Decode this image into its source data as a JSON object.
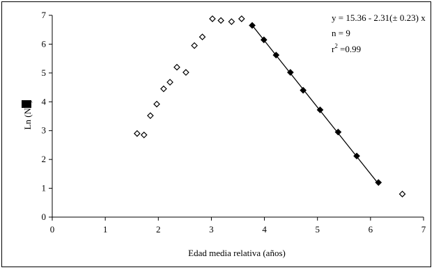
{
  "chart_data": {
    "type": "scatter",
    "xlabel": "Edad media relativa (años)",
    "ylabel": "Ln (N/t)",
    "xlim": [
      0,
      7
    ],
    "ylim": [
      0,
      7
    ],
    "xticks": [
      0,
      1,
      2,
      3,
      4,
      5,
      6,
      7
    ],
    "yticks": [
      0,
      1,
      2,
      3,
      4,
      5,
      6,
      7
    ],
    "grid": false,
    "colors": {
      "points": "#000000",
      "background": "#ffffff"
    },
    "series": [
      {
        "marker": "open-diamond",
        "x": [
          1.6,
          1.73,
          1.85,
          1.97,
          2.1,
          2.22,
          2.35,
          2.52,
          2.68,
          2.83,
          3.02,
          3.18,
          3.38,
          3.57,
          6.6
        ],
        "y": [
          2.9,
          2.85,
          3.52,
          3.92,
          4.45,
          4.68,
          5.2,
          5.02,
          5.95,
          6.25,
          6.88,
          6.82,
          6.78,
          6.88,
          0.8
        ]
      },
      {
        "marker": "filled-diamond",
        "x": [
          3.77,
          3.99,
          4.22,
          4.49,
          4.73,
          5.05,
          5.39,
          5.74,
          6.15
        ],
        "y": [
          6.65,
          6.15,
          5.62,
          5.02,
          4.4,
          3.72,
          2.95,
          2.12,
          1.2
        ]
      }
    ],
    "fit_line": {
      "intercept": 15.36,
      "slope": -2.31,
      "x_range": [
        3.77,
        6.15
      ]
    },
    "annotations": {
      "equation": "y = 15.36 - 2.31(± 0.23) x",
      "n": "n = 9",
      "r2_base": "r",
      "r2_exp": "2",
      "r2_value": " =0.99"
    }
  }
}
